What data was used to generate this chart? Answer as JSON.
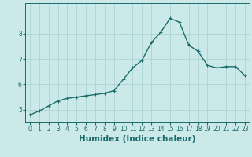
{
  "xlabel": "Humidex (Indice chaleur)",
  "background_color": "#cce9e9",
  "line_color": "#1a6b6b",
  "marker": "+",
  "x": [
    0,
    1,
    2,
    3,
    4,
    5,
    6,
    7,
    8,
    9,
    10,
    11,
    12,
    13,
    14,
    15,
    16,
    17,
    18,
    19,
    20,
    21,
    22,
    23
  ],
  "y": [
    4.8,
    4.95,
    5.15,
    5.35,
    5.45,
    5.5,
    5.55,
    5.6,
    5.65,
    5.75,
    6.2,
    6.65,
    6.95,
    7.65,
    8.05,
    8.6,
    8.45,
    7.55,
    7.3,
    6.75,
    6.65,
    6.7,
    6.7,
    6.35
  ],
  "xlim": [
    -0.5,
    23.5
  ],
  "ylim": [
    4.5,
    9.2
  ],
  "yticks": [
    5,
    6,
    7,
    8
  ],
  "xticks": [
    0,
    1,
    2,
    3,
    4,
    5,
    6,
    7,
    8,
    9,
    10,
    11,
    12,
    13,
    14,
    15,
    16,
    17,
    18,
    19,
    20,
    21,
    22,
    23
  ],
  "grid_color": "#aad4d4",
  "linewidth": 1.0,
  "markersize": 3,
  "tick_fontsize": 5.5,
  "xlabel_fontsize": 7.5
}
